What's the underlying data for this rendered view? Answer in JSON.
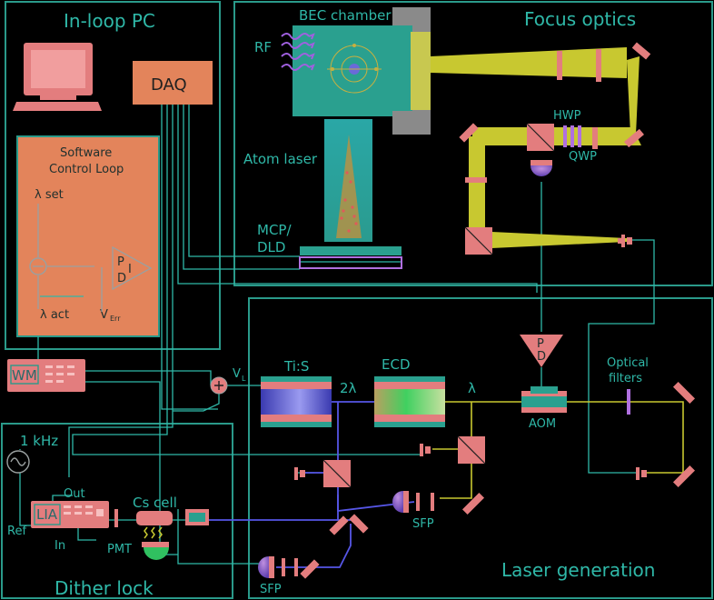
{
  "panels": {
    "in_loop_pc": "In-loop PC",
    "focus_optics": "Focus optics",
    "laser_generation": "Laser generation",
    "dither_lock": "Dither lock"
  },
  "labels": {
    "daq": "DAQ",
    "software_control_loop_1": "Software",
    "software_control_loop_2": "Control Loop",
    "lambda_set": "λ set",
    "lambda_act": "λ act",
    "v_err": "V",
    "v_err_sub": "Err",
    "pid_p": "P",
    "pid_d": "D",
    "pid_i": "I",
    "wm": "WM",
    "v_l": "V",
    "v_l_sub": "L",
    "freq_1khz": "1 kHz",
    "lia": "LIA",
    "out": "Out",
    "ref": "Ref",
    "in": "In",
    "cs_cell": "Cs cell",
    "pmt": "PMT",
    "bec_chamber": "BEC chamber",
    "rf": "RF",
    "atom_laser": "Atom laser",
    "mcp_dld_1": "MCP/",
    "mcp_dld_2": "DLD",
    "hwp": "HWP",
    "qwp": "QWP",
    "ti_s": "Ti:S",
    "two_lambda": "2λ",
    "ecd": "ECD",
    "lambda": "λ",
    "aom": "AOM",
    "optical_filters_1": "Optical",
    "optical_filters_2": "filters",
    "sfp_top": "SFP",
    "sfp_bottom": "SFP",
    "pd_p": "P",
    "pd_d": "D"
  },
  "colors": {
    "background": "#000000",
    "panel_border": "#2a9a8a",
    "text": "#2fb8a8",
    "salmon": "#e37d7e",
    "yellow_beam": "#c8c830",
    "blue_beam": "#5656e6",
    "focus_panel_bg": "#130a0a",
    "laser_panel_bg": "#0f0818"
  }
}
